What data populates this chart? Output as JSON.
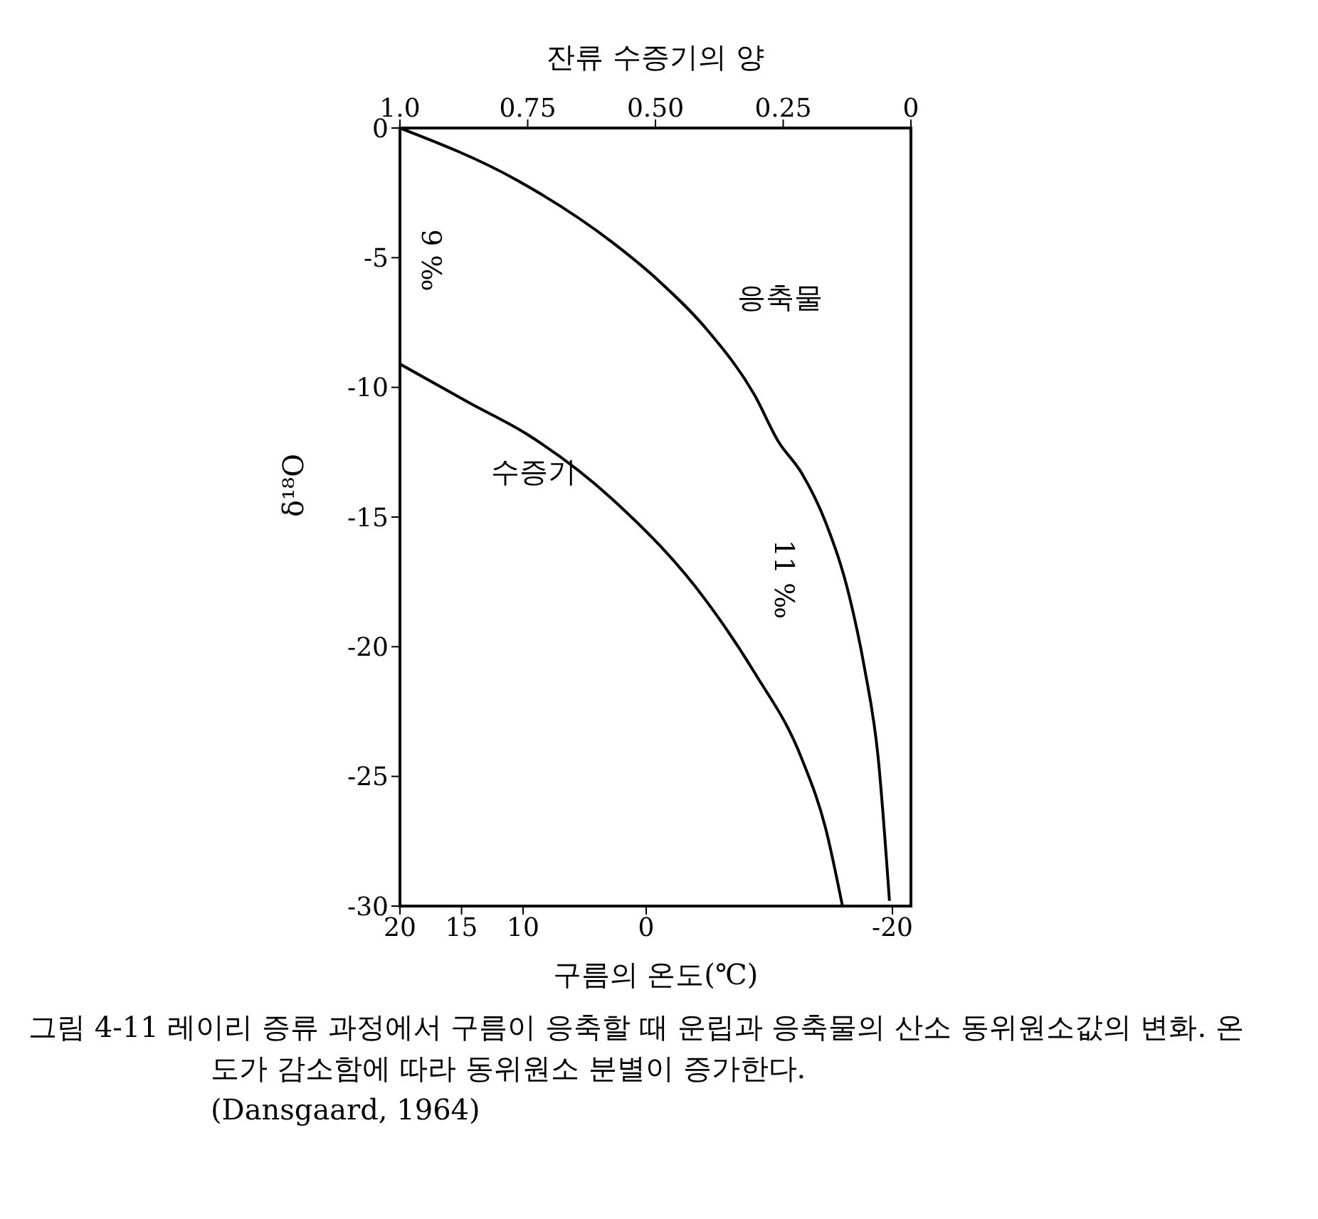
{
  "chart_data": {
    "type": "line",
    "xlabel": "구름의 온도(℃)",
    "x2label": "잔류 수증기의 양",
    "ylabel": "δ¹⁸O",
    "xlim": [
      20,
      -21.5
    ],
    "xticks": [
      20,
      15,
      10,
      0,
      -20
    ],
    "x2lim": [
      1,
      0
    ],
    "x2ticks": [
      {
        "value": 1,
        "label": "1.0"
      },
      0.75,
      {
        "value": 0.5,
        "label": "0.50"
      },
      0.25,
      0
    ],
    "ylim": [
      -30,
      0
    ],
    "yticks": [
      0,
      -5,
      -10,
      -15,
      -20,
      -25,
      -30
    ],
    "series": [
      {
        "name": "응축물",
        "color": "#000000",
        "axis": "x2",
        "x": [
          1,
          0.772,
          0.585,
          0.493,
          0.398,
          0.306,
          0.259,
          0.214,
          0.167,
          0.12,
          0.092,
          0.064,
          0.042
        ],
        "values": [
          0,
          -2.0,
          -4.4,
          -5.9,
          -7.8,
          -10.3,
          -12.1,
          -13.3,
          -15.2,
          -18.1,
          -20.7,
          -24.3,
          -29.8
        ]
      },
      {
        "name": "수증기",
        "color": "#000000",
        "axis": "x2",
        "x": [
          1,
          0.864,
          0.752,
          0.585,
          0.398,
          0.306,
          0.214,
          0.167,
          0.134
        ],
        "values": [
          -9.1,
          -10.6,
          -11.8,
          -14.3,
          -18.3,
          -21.0,
          -24.3,
          -27.0,
          -30
        ]
      }
    ],
    "annotations": [
      "9 ‰",
      "11 ‰",
      "그림 4-11 레이리 증류 과정에서 구름이 응축할 때 운립과 응축물의 산소 동위원소값의 변화. 온도가 감소함에 따라 동위원소 분별이 증가한다.",
      "(Dansgaard, 1964)"
    ]
  }
}
